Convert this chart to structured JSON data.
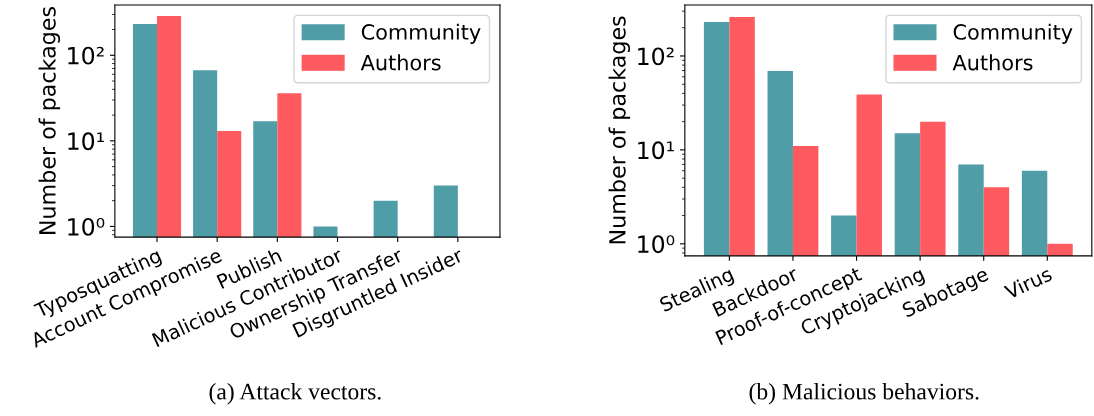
{
  "chart_data": [
    {
      "type": "bar",
      "ylabel": "Number of packages",
      "categories": [
        "Typosquatting",
        "Account Compromise",
        "Publish",
        "Malicious Contributor",
        "Ownership Transfer",
        "Disgruntled Insider"
      ],
      "series": [
        {
          "name": "Community",
          "color": "#4f9da6",
          "values": [
            232,
            67,
            17,
            1,
            2,
            3
          ]
        },
        {
          "name": "Authors",
          "color": "#ff5a5f",
          "values": [
            288,
            13,
            36,
            null,
            null,
            null
          ]
        }
      ],
      "log": true,
      "ylim": [
        0.75,
        387
      ],
      "yticks": [
        {
          "value": 1,
          "label": "10⁰"
        },
        {
          "value": 10,
          "label": "10¹"
        },
        {
          "value": 100,
          "label": "10²"
        }
      ],
      "legend": "top right",
      "grid": false,
      "annotations": [
        "(a) Attack vectors."
      ]
    },
    {
      "type": "bar",
      "ylabel": "Number of packages",
      "categories": [
        "Stealing",
        "Backdoor",
        "Proof-of-concept",
        "Cryptojacking",
        "Sabotage",
        "Virus"
      ],
      "series": [
        {
          "name": "Community",
          "color": "#4f9da6",
          "values": [
            230,
            69,
            2,
            15,
            7,
            6
          ]
        },
        {
          "name": "Authors",
          "color": "#ff5a5f",
          "values": [
            260,
            11,
            39,
            20,
            4,
            1
          ]
        }
      ],
      "log": true,
      "ylim": [
        0.745,
        349
      ],
      "yticks": [
        {
          "value": 1,
          "label": "10⁰"
        },
        {
          "value": 10,
          "label": "10¹"
        },
        {
          "value": 100,
          "label": "10²"
        }
      ],
      "legend": "top right",
      "grid": false,
      "annotations": [
        "(b) Malicious behaviors."
      ]
    }
  ]
}
